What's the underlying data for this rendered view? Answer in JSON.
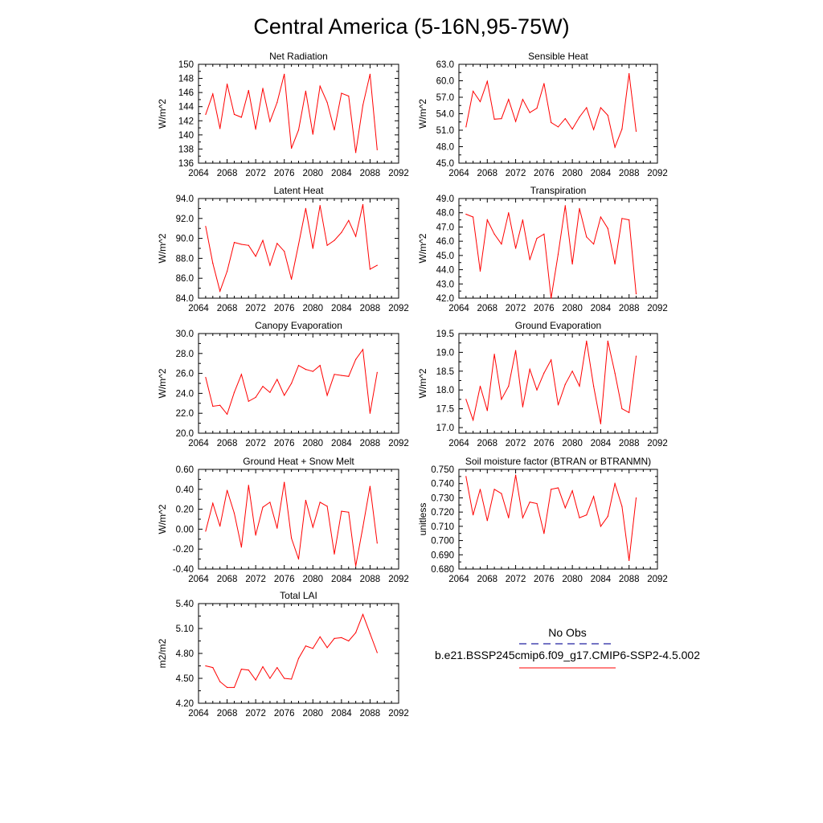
{
  "figure": {
    "title": "Central America (5-16N,95-75W)"
  },
  "chart_data": [
    {
      "type": "line",
      "title": "Net Radiation",
      "xlabel": "",
      "ylabel": "W/m^2",
      "xlim": [
        2064,
        2092
      ],
      "ylim": [
        136,
        150
      ],
      "xticks": [
        2064,
        2068,
        2072,
        2076,
        2080,
        2084,
        2088,
        2092
      ],
      "yticks": [
        136,
        138,
        140,
        142,
        144,
        146,
        148,
        150
      ],
      "yticklabels": [
        "136",
        "138",
        "140",
        "142",
        "144",
        "146",
        "148",
        "150"
      ],
      "x": [
        2065,
        2066,
        2067,
        2068,
        2069,
        2070,
        2071,
        2072,
        2073,
        2074,
        2075,
        2076,
        2077,
        2078,
        2079,
        2080,
        2081,
        2082,
        2083,
        2084,
        2085,
        2086,
        2087,
        2088,
        2089
      ],
      "series": [
        {
          "color": "#ff0000",
          "values": [
            142.9,
            145.8,
            140.9,
            147.2,
            142.9,
            142.5,
            146.3,
            140.8,
            146.6,
            141.9,
            144.6,
            148.6,
            138.1,
            140.7,
            146.2,
            140.1,
            146.9,
            144.6,
            140.7,
            145.9,
            145.5,
            137.5,
            144.2,
            148.6,
            137.9
          ]
        }
      ]
    },
    {
      "type": "line",
      "title": "Sensible Heat",
      "xlabel": "",
      "ylabel": "W/m^2",
      "xlim": [
        2064,
        2092
      ],
      "ylim": [
        45,
        63
      ],
      "xticks": [
        2064,
        2068,
        2072,
        2076,
        2080,
        2084,
        2088,
        2092
      ],
      "yticks": [
        45,
        48,
        51,
        54,
        57,
        60,
        63
      ],
      "yticklabels": [
        "45.0",
        "48.0",
        "51.0",
        "54.0",
        "57.0",
        "60.0",
        "63.0"
      ],
      "x": [
        2065,
        2066,
        2067,
        2068,
        2069,
        2070,
        2071,
        2072,
        2073,
        2074,
        2075,
        2076,
        2077,
        2078,
        2079,
        2080,
        2081,
        2082,
        2083,
        2084,
        2085,
        2086,
        2087,
        2088,
        2089
      ],
      "series": [
        {
          "color": "#ff0000",
          "values": [
            51.6,
            58.1,
            56.2,
            59.9,
            53.0,
            53.1,
            56.6,
            52.6,
            56.6,
            54.2,
            55.0,
            59.5,
            52.4,
            51.6,
            53.1,
            51.2,
            53.4,
            55.1,
            51.1,
            55.1,
            53.7,
            47.9,
            51.2,
            61.3,
            50.8
          ]
        }
      ]
    },
    {
      "type": "line",
      "title": "Latent Heat",
      "xlabel": "",
      "ylabel": "W/m^2",
      "xlim": [
        2064,
        2092
      ],
      "ylim": [
        84,
        94
      ],
      "xticks": [
        2064,
        2068,
        2072,
        2076,
        2080,
        2084,
        2088,
        2092
      ],
      "yticks": [
        84,
        86,
        88,
        90,
        92,
        94
      ],
      "yticklabels": [
        "84.0",
        "86.0",
        "88.0",
        "90.0",
        "92.0",
        "94.0"
      ],
      "x": [
        2065,
        2066,
        2067,
        2068,
        2069,
        2070,
        2071,
        2072,
        2073,
        2074,
        2075,
        2076,
        2077,
        2078,
        2079,
        2080,
        2081,
        2082,
        2083,
        2084,
        2085,
        2086,
        2087,
        2088,
        2089
      ],
      "series": [
        {
          "color": "#ff0000",
          "values": [
            91.2,
            87.5,
            84.7,
            86.7,
            89.6,
            89.4,
            89.3,
            88.2,
            89.8,
            87.3,
            89.5,
            88.7,
            85.9,
            89.4,
            93.0,
            89.0,
            93.3,
            89.3,
            89.8,
            90.6,
            91.8,
            90.2,
            93.4,
            86.9,
            87.3
          ]
        }
      ]
    },
    {
      "type": "line",
      "title": "Transpiration",
      "xlabel": "",
      "ylabel": "W/m^2",
      "xlim": [
        2064,
        2092
      ],
      "ylim": [
        42,
        49
      ],
      "xticks": [
        2064,
        2068,
        2072,
        2076,
        2080,
        2084,
        2088,
        2092
      ],
      "yticks": [
        42,
        43,
        44,
        45,
        46,
        47,
        48,
        49
      ],
      "yticklabels": [
        "42.0",
        "43.0",
        "44.0",
        "45.0",
        "46.0",
        "47.0",
        "48.0",
        "49.0"
      ],
      "x": [
        2065,
        2066,
        2067,
        2068,
        2069,
        2070,
        2071,
        2072,
        2073,
        2074,
        2075,
        2076,
        2077,
        2078,
        2079,
        2080,
        2081,
        2082,
        2083,
        2084,
        2085,
        2086,
        2087,
        2088,
        2089
      ],
      "series": [
        {
          "color": "#ff0000",
          "values": [
            47.9,
            47.7,
            43.9,
            47.5,
            46.5,
            45.8,
            48.0,
            45.5,
            47.5,
            44.7,
            46.2,
            46.5,
            42.0,
            45.1,
            48.5,
            44.4,
            48.3,
            46.3,
            45.8,
            47.7,
            46.9,
            44.4,
            47.6,
            47.5,
            42.3
          ]
        }
      ]
    },
    {
      "type": "line",
      "title": "Canopy Evaporation",
      "xlabel": "",
      "ylabel": "W/m^2",
      "xlim": [
        2064,
        2092
      ],
      "ylim": [
        20,
        30
      ],
      "xticks": [
        2064,
        2068,
        2072,
        2076,
        2080,
        2084,
        2088,
        2092
      ],
      "yticks": [
        20,
        22,
        24,
        26,
        28,
        30
      ],
      "yticklabels": [
        "20.0",
        "22.0",
        "24.0",
        "26.0",
        "28.0",
        "30.0"
      ],
      "x": [
        2065,
        2066,
        2067,
        2068,
        2069,
        2070,
        2071,
        2072,
        2073,
        2074,
        2075,
        2076,
        2077,
        2078,
        2079,
        2080,
        2081,
        2082,
        2083,
        2084,
        2085,
        2086,
        2087,
        2088,
        2089
      ],
      "series": [
        {
          "color": "#ff0000",
          "values": [
            25.6,
            22.7,
            22.8,
            21.9,
            24.1,
            25.9,
            23.2,
            23.6,
            24.7,
            24.1,
            25.4,
            23.8,
            25.0,
            26.8,
            26.4,
            26.2,
            26.8,
            23.8,
            25.9,
            25.8,
            25.7,
            27.4,
            28.4,
            22.0,
            26.1
          ]
        }
      ]
    },
    {
      "type": "line",
      "title": "Ground Evaporation",
      "xlabel": "",
      "ylabel": "W/m^2",
      "xlim": [
        2064,
        2092
      ],
      "ylim": [
        16.85,
        19.5
      ],
      "xticks": [
        2064,
        2068,
        2072,
        2076,
        2080,
        2084,
        2088,
        2092
      ],
      "yticks": [
        17.0,
        17.5,
        18.0,
        18.5,
        19.0,
        19.5
      ],
      "yticklabels": [
        "17.0",
        "17.5",
        "18.0",
        "18.5",
        "19.0",
        "19.5"
      ],
      "x": [
        2065,
        2066,
        2067,
        2068,
        2069,
        2070,
        2071,
        2072,
        2073,
        2074,
        2075,
        2076,
        2077,
        2078,
        2079,
        2080,
        2081,
        2082,
        2083,
        2084,
        2085,
        2086,
        2087,
        2088,
        2089
      ],
      "series": [
        {
          "color": "#ff0000",
          "values": [
            17.75,
            17.2,
            18.1,
            17.45,
            18.95,
            17.75,
            18.1,
            19.05,
            17.55,
            18.55,
            18.0,
            18.45,
            18.8,
            17.6,
            18.15,
            18.5,
            18.1,
            19.3,
            18.1,
            17.1,
            19.3,
            18.45,
            17.5,
            17.4,
            18.9
          ]
        }
      ]
    },
    {
      "type": "line",
      "title": "Ground Heat + Snow Melt",
      "xlabel": "",
      "ylabel": "W/m^2",
      "xlim": [
        2064,
        2092
      ],
      "ylim": [
        -0.4,
        0.6
      ],
      "xticks": [
        2064,
        2068,
        2072,
        2076,
        2080,
        2084,
        2088,
        2092
      ],
      "yticks": [
        -0.4,
        -0.2,
        0.0,
        0.2,
        0.4,
        0.6
      ],
      "yticklabels": [
        "-0.40",
        "-0.20",
        "0.00",
        "0.20",
        "0.40",
        "0.60"
      ],
      "x": [
        2065,
        2066,
        2067,
        2068,
        2069,
        2070,
        2071,
        2072,
        2073,
        2074,
        2075,
        2076,
        2077,
        2078,
        2079,
        2080,
        2081,
        2082,
        2083,
        2084,
        2085,
        2086,
        2087,
        2088,
        2089
      ],
      "series": [
        {
          "color": "#ff0000",
          "values": [
            -0.02,
            0.26,
            0.03,
            0.39,
            0.16,
            -0.18,
            0.44,
            -0.06,
            0.22,
            0.27,
            0.01,
            0.47,
            -0.09,
            -0.3,
            0.29,
            0.02,
            0.27,
            0.23,
            -0.25,
            0.18,
            0.17,
            -0.37,
            0.02,
            0.43,
            -0.14
          ]
        }
      ]
    },
    {
      "type": "line",
      "title": "Soil moisture factor (BTRAN or BTRANMN)",
      "xlabel": "",
      "ylabel": "unitless",
      "xlim": [
        2064,
        2092
      ],
      "ylim": [
        0.68,
        0.75
      ],
      "xticks": [
        2064,
        2068,
        2072,
        2076,
        2080,
        2084,
        2088,
        2092
      ],
      "yticks": [
        0.68,
        0.69,
        0.7,
        0.71,
        0.72,
        0.73,
        0.74,
        0.75
      ],
      "yticklabels": [
        "0.680",
        "0.690",
        "0.700",
        "0.710",
        "0.720",
        "0.730",
        "0.740",
        "0.750"
      ],
      "x": [
        2065,
        2066,
        2067,
        2068,
        2069,
        2070,
        2071,
        2072,
        2073,
        2074,
        2075,
        2076,
        2077,
        2078,
        2079,
        2080,
        2081,
        2082,
        2083,
        2084,
        2085,
        2086,
        2087,
        2088,
        2089
      ],
      "series": [
        {
          "color": "#ff0000",
          "values": [
            0.745,
            0.718,
            0.736,
            0.714,
            0.736,
            0.733,
            0.716,
            0.746,
            0.716,
            0.727,
            0.726,
            0.705,
            0.736,
            0.737,
            0.723,
            0.735,
            0.716,
            0.718,
            0.731,
            0.71,
            0.717,
            0.74,
            0.724,
            0.686,
            0.73
          ]
        }
      ]
    },
    {
      "type": "line",
      "title": "Total LAI",
      "xlabel": "",
      "ylabel": "m2/m2",
      "xlim": [
        2064,
        2092
      ],
      "ylim": [
        4.2,
        5.4
      ],
      "xticks": [
        2064,
        2068,
        2072,
        2076,
        2080,
        2084,
        2088,
        2092
      ],
      "yticks": [
        4.2,
        4.5,
        4.8,
        5.1,
        5.4
      ],
      "yticklabels": [
        "4.20",
        "4.50",
        "4.80",
        "5.10",
        "5.40"
      ],
      "x": [
        2065,
        2066,
        2067,
        2068,
        2069,
        2070,
        2071,
        2072,
        2073,
        2074,
        2075,
        2076,
        2077,
        2078,
        2079,
        2080,
        2081,
        2082,
        2083,
        2084,
        2085,
        2086,
        2087,
        2088,
        2089
      ],
      "series": [
        {
          "color": "#ff0000",
          "values": [
            4.65,
            4.63,
            4.46,
            4.39,
            4.39,
            4.61,
            4.6,
            4.48,
            4.64,
            4.5,
            4.63,
            4.5,
            4.49,
            4.74,
            4.89,
            4.86,
            5.0,
            4.87,
            4.98,
            4.99,
            4.95,
            5.05,
            5.27,
            5.04,
            4.81
          ]
        }
      ]
    }
  ],
  "legend": {
    "entries": [
      {
        "label": "No Obs",
        "color": "#2020a0",
        "style": "dashed"
      },
      {
        "label": "b.e21.BSSP245cmip6.f09_g17.CMIP6-SSP2-4.5.002",
        "color": "#ff0000",
        "style": "solid"
      }
    ]
  }
}
